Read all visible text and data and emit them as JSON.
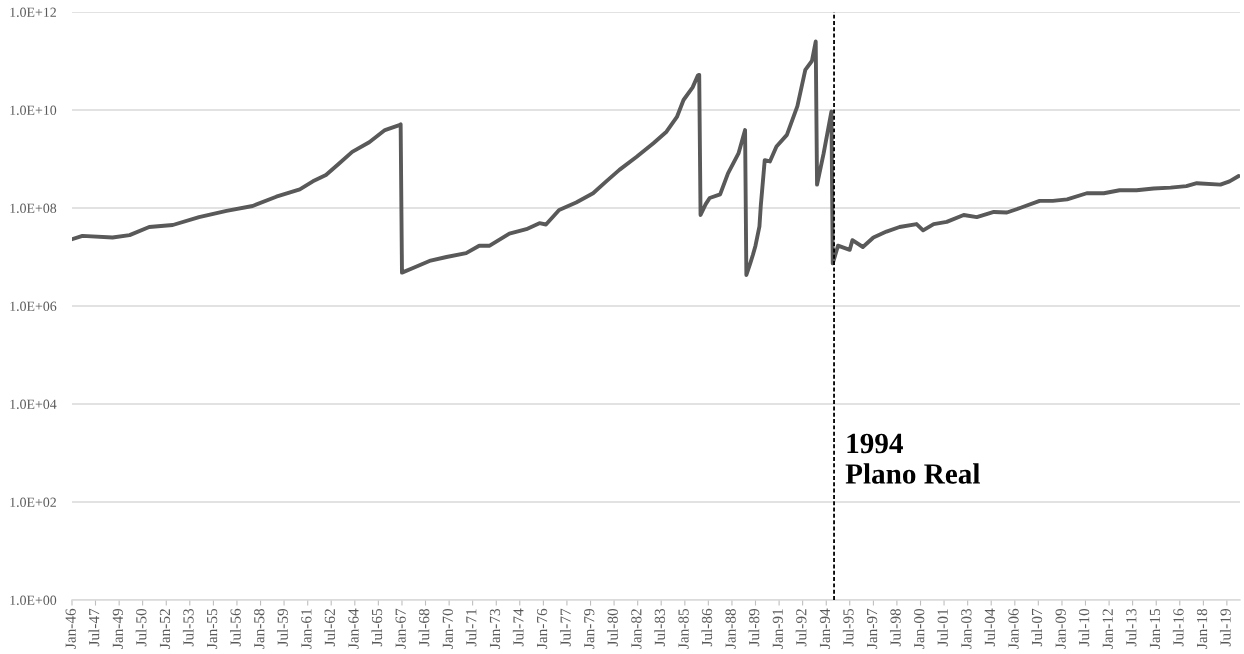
{
  "chart_data": {
    "type": "line",
    "x": [
      "1946-01",
      "1946-09",
      "1948-08",
      "1949-09",
      "1950-12",
      "1952-06",
      "1954-02",
      "1955-11",
      "1957-07",
      "1959-01",
      "1960-07",
      "1961-05",
      "1962-03",
      "1963-01",
      "1963-11",
      "1964-12",
      "1965-12",
      "1966-11",
      "1966-12",
      "1967-01",
      "1967-09",
      "1968-10",
      "1969-11",
      "1971-02",
      "1971-12",
      "1972-08",
      "1973-11",
      "1974-12",
      "1975-10",
      "1976-03",
      "1977-01",
      "1978-02",
      "1979-03",
      "1980-01",
      "1980-11",
      "1981-12",
      "1983-01",
      "1983-11",
      "1984-07",
      "1984-12",
      "1985-07",
      "1985-11",
      "1985-12",
      "1986-01",
      "1986-05",
      "1986-08",
      "1987-04",
      "1987-10",
      "1988-06",
      "1988-11",
      "1988-12",
      "1989-03",
      "1989-05",
      "1989-07",
      "1989-10",
      "1989-11",
      "1990-02",
      "1990-06",
      "1990-11",
      "1991-07",
      "1992-03",
      "1992-09",
      "1993-02",
      "1993-05",
      "1993-06",
      "1993-11",
      "1994-05",
      "1994-06",
      "1994-10",
      "1995-07",
      "1995-09",
      "1996-05",
      "1997-01",
      "1997-11",
      "1998-09",
      "1999-10",
      "2000-03",
      "2000-11",
      "2001-09",
      "2002-10",
      "2003-08",
      "2004-09",
      "2005-07",
      "2006-05",
      "2007-08",
      "2008-06",
      "2009-05",
      "2010-08",
      "2011-09",
      "2012-09",
      "2013-10",
      "2014-11",
      "2015-12",
      "2016-12",
      "2017-08",
      "2019-02",
      "2019-09",
      "2020-04"
    ],
    "series": [
      {
        "color": "#595959",
        "values": [
          23000000.0,
          27000000.0,
          25000000.0,
          28000000.0,
          41000000.0,
          45000000.0,
          65000000.0,
          87000000.0,
          110000000.0,
          170000000.0,
          240000000.0,
          350000000.0,
          470000000.0,
          810000000.0,
          1400000000.0,
          2200000000.0,
          3900000000.0,
          4900000000.0,
          5100000000.0,
          4800000.0,
          5900000.0,
          8300000.0,
          10000000.0,
          12000000.0,
          17000000.0,
          17000000.0,
          30000000.0,
          37000000.0,
          49000000.0,
          46000000.0,
          91000000.0,
          130000000.0,
          200000000.0,
          350000000.0,
          600000000.0,
          1100000000.0,
          2100000000.0,
          3600000000.0,
          7200000000.0,
          16000000000.0,
          29000000000.0,
          51000000000.0,
          52000000000.0,
          72000000.0,
          120000000.0,
          160000000.0,
          190000000.0,
          510000000.0,
          1300000000.0,
          3900000000.0,
          4300000.0,
          7400000.0,
          11000000.0,
          17000000.0,
          42000000.0,
          110000000.0,
          950000000.0,
          890000000.0,
          1800000000.0,
          3100000000.0,
          12000000000.0,
          66000000000.0,
          100000000000.0,
          250000000000.0,
          300000000.0,
          1300000000.0,
          9300000000.0,
          7400000.0,
          17000000.0,
          14000000.0,
          22000000.0,
          16000000.0,
          25000000.0,
          33000000.0,
          41000000.0,
          47000000.0,
          35000000.0,
          47000000.0,
          52000000.0,
          72000000.0,
          65000000.0,
          83000000.0,
          81000000.0,
          100000000.0,
          140000000.0,
          140000000.0,
          150000000.0,
          200000000.0,
          200000000.0,
          230000000.0,
          230000000.0,
          250000000.0,
          260000000.0,
          280000000.0,
          320000000.0,
          300000000.0,
          350000000.0,
          450000000.0
        ]
      }
    ],
    "log": true,
    "ylim": [
      1,
      1000000000000.0
    ],
    "yticks": [
      {
        "value": 1,
        "label": "1.0E+00"
      },
      {
        "value": 100,
        "label": "1.0E+02"
      },
      {
        "value": 10000,
        "label": "1.0E+04"
      },
      {
        "value": 1000000,
        "label": "1.0E+06"
      },
      {
        "value": 100000000,
        "label": "1.0E+08"
      },
      {
        "value": 10000000000,
        "label": "1.0E+10"
      },
      {
        "value": 1000000000000,
        "label": "1.0E+12"
      }
    ],
    "xlim": [
      "1946-01",
      "2020-05"
    ],
    "xticks": [
      {
        "value": "1946-01",
        "label": "Jan-46"
      },
      {
        "value": "1947-07",
        "label": "Jul-47"
      },
      {
        "value": "1949-01",
        "label": "Jan-49"
      },
      {
        "value": "1950-07",
        "label": "Jul-50"
      },
      {
        "value": "1952-01",
        "label": "Jan-52"
      },
      {
        "value": "1953-07",
        "label": "Jul-53"
      },
      {
        "value": "1955-01",
        "label": "Jan-55"
      },
      {
        "value": "1956-07",
        "label": "Jul-56"
      },
      {
        "value": "1958-01",
        "label": "Jan-58"
      },
      {
        "value": "1959-07",
        "label": "Jul-59"
      },
      {
        "value": "1961-01",
        "label": "Jan-61"
      },
      {
        "value": "1962-07",
        "label": "Jul-62"
      },
      {
        "value": "1964-01",
        "label": "Jan-64"
      },
      {
        "value": "1965-07",
        "label": "Jul-65"
      },
      {
        "value": "1967-01",
        "label": "Jan-67"
      },
      {
        "value": "1968-07",
        "label": "Jul-68"
      },
      {
        "value": "1970-01",
        "label": "Jan-70"
      },
      {
        "value": "1971-07",
        "label": "Jul-71"
      },
      {
        "value": "1973-01",
        "label": "Jan-73"
      },
      {
        "value": "1974-07",
        "label": "Jul-74"
      },
      {
        "value": "1976-01",
        "label": "Jan-76"
      },
      {
        "value": "1977-07",
        "label": "Jul-77"
      },
      {
        "value": "1979-01",
        "label": "Jan-79"
      },
      {
        "value": "1980-07",
        "label": "Jul-80"
      },
      {
        "value": "1982-01",
        "label": "Jan-82"
      },
      {
        "value": "1983-07",
        "label": "Jul-83"
      },
      {
        "value": "1985-01",
        "label": "Jan-85"
      },
      {
        "value": "1986-07",
        "label": "Jul-86"
      },
      {
        "value": "1988-01",
        "label": "Jan-88"
      },
      {
        "value": "1989-07",
        "label": "Jul-89"
      },
      {
        "value": "1991-01",
        "label": "Jan-91"
      },
      {
        "value": "1992-07",
        "label": "Jul-92"
      },
      {
        "value": "1994-01",
        "label": "Jan-94"
      },
      {
        "value": "1995-07",
        "label": "Jul-95"
      },
      {
        "value": "1997-01",
        "label": "Jan-97"
      },
      {
        "value": "1998-07",
        "label": "Jul-98"
      },
      {
        "value": "2000-01",
        "label": "Jan-00"
      },
      {
        "value": "2001-07",
        "label": "Jul-01"
      },
      {
        "value": "2003-01",
        "label": "Jan-03"
      },
      {
        "value": "2004-07",
        "label": "Jul-04"
      },
      {
        "value": "2006-01",
        "label": "Jan-06"
      },
      {
        "value": "2007-07",
        "label": "Jul-07"
      },
      {
        "value": "2009-01",
        "label": "Jan-09"
      },
      {
        "value": "2010-07",
        "label": "Jul-10"
      },
      {
        "value": "2012-01",
        "label": "Jan-12"
      },
      {
        "value": "2013-07",
        "label": "Jul-13"
      },
      {
        "value": "2015-01",
        "label": "Jan-15"
      },
      {
        "value": "2016-07",
        "label": "Jul-16"
      },
      {
        "value": "2018-01",
        "label": "Jan-18"
      },
      {
        "value": "2019-07",
        "label": "Jul-19"
      }
    ],
    "grid": "y",
    "ref_lines": [
      {
        "axis": "x",
        "value": "1994-07",
        "label": "1994\nPlano Real",
        "color": "#000000",
        "line_style": "dashed"
      }
    ]
  }
}
